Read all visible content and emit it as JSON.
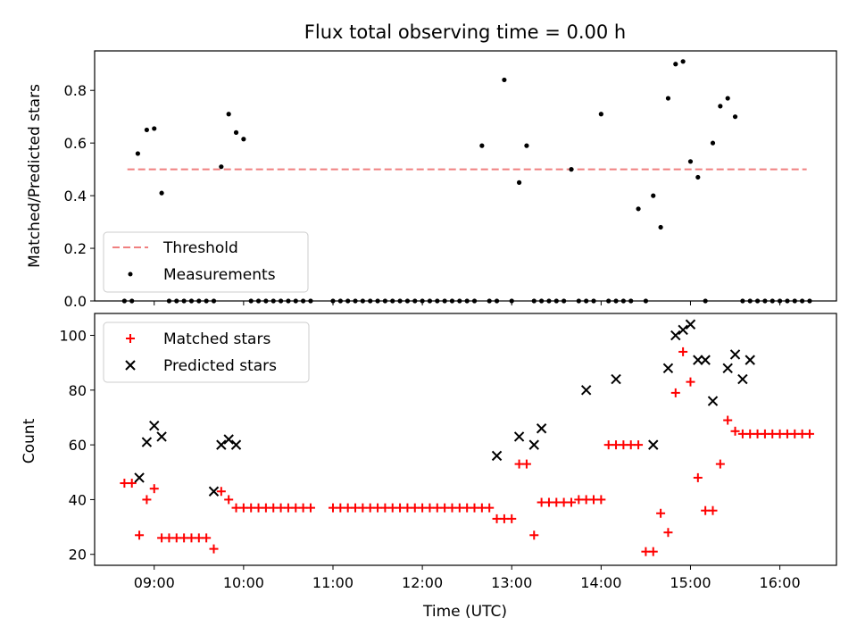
{
  "chart_data": [
    {
      "type": "scatter",
      "title": "Flux total observing time = 0.00 h",
      "xlabel": "",
      "ylabel": "Matched/Predicted stars",
      "xlim": [
        "08:20",
        "16:38"
      ],
      "ylim": [
        0,
        0.95
      ],
      "yticks": [
        "0.0",
        "0.2",
        "0.4",
        "0.6",
        "0.8"
      ],
      "xticks": [
        "09:00",
        "10:00",
        "11:00",
        "12:00",
        "13:00",
        "14:00",
        "15:00",
        "16:00"
      ],
      "legend": {
        "placement": "lower-left",
        "entries": [
          "Threshold",
          "Measurements"
        ]
      },
      "series": [
        {
          "name": "Threshold",
          "style": "dashed-line",
          "color": "#f08080",
          "x": [
            "08:42",
            "16:18"
          ],
          "y": [
            0.5,
            0.5
          ]
        },
        {
          "name": "Measurements",
          "style": "dot",
          "color": "#000000",
          "x": [
            "08:40",
            "08:45",
            "08:49",
            "08:55",
            "09:00",
            "09:05",
            "09:10",
            "09:15",
            "09:20",
            "09:25",
            "09:30",
            "09:35",
            "09:40",
            "09:45",
            "09:50",
            "09:55",
            "10:00",
            "10:05",
            "10:10",
            "10:15",
            "10:20",
            "10:25",
            "10:30",
            "10:35",
            "10:40",
            "10:45",
            "11:00",
            "11:05",
            "11:10",
            "11:15",
            "11:20",
            "11:25",
            "11:30",
            "11:35",
            "11:40",
            "11:45",
            "11:50",
            "11:55",
            "12:00",
            "12:05",
            "12:10",
            "12:15",
            "12:20",
            "12:25",
            "12:30",
            "12:35",
            "12:40",
            "12:45",
            "12:50",
            "12:55",
            "13:00",
            "13:05",
            "13:10",
            "13:15",
            "13:20",
            "13:25",
            "13:30",
            "13:35",
            "13:40",
            "13:45",
            "13:50",
            "13:55",
            "14:00",
            "14:05",
            "14:10",
            "14:15",
            "14:20",
            "14:25",
            "14:30",
            "14:35",
            "14:40",
            "14:45",
            "14:50",
            "14:55",
            "15:00",
            "15:05",
            "15:10",
            "15:15",
            "15:20",
            "15:25",
            "15:30",
            "15:35",
            "15:40",
            "15:45",
            "15:50",
            "15:55",
            "16:00",
            "16:05",
            "16:10",
            "16:15",
            "16:20"
          ],
          "y": [
            0,
            0,
            0.56,
            0.65,
            0.655,
            0.41,
            0,
            0,
            0,
            0,
            0,
            0,
            0,
            0.51,
            0.71,
            0.64,
            0.615,
            0,
            0,
            0,
            0,
            0,
            0,
            0,
            0,
            0,
            0,
            0,
            0,
            0,
            0,
            0,
            0,
            0,
            0,
            0,
            0,
            0,
            0,
            0,
            0,
            0,
            0,
            0,
            0,
            0,
            0.59,
            0,
            0,
            0.84,
            0,
            0.45,
            0.59,
            0,
            0,
            0,
            0,
            0,
            0.5,
            0,
            0,
            0,
            0.71,
            0,
            0,
            0,
            0,
            0.35,
            0,
            0.4,
            0.28,
            0.77,
            0.9,
            0.91,
            0.53,
            0.47,
            0,
            0.6,
            0.74,
            0.77,
            0.7,
            0,
            0,
            0,
            0,
            0,
            0,
            0,
            0,
            0,
            0
          ]
        }
      ]
    },
    {
      "type": "scatter",
      "title": "",
      "xlabel": "Time (UTC)",
      "ylabel": "Count",
      "xlim": [
        "08:20",
        "16:38"
      ],
      "ylim": [
        16,
        108
      ],
      "yticks": [
        "20",
        "40",
        "60",
        "80",
        "100"
      ],
      "xticks": [
        "09:00",
        "10:00",
        "11:00",
        "12:00",
        "13:00",
        "14:00",
        "15:00",
        "16:00"
      ],
      "legend": {
        "placement": "upper-left",
        "entries": [
          "Matched stars",
          "Predicted stars"
        ]
      },
      "series": [
        {
          "name": "Matched stars",
          "marker": "plus",
          "color": "#ff0000",
          "x": [
            "08:40",
            "08:45",
            "08:50",
            "08:55",
            "09:00",
            "09:05",
            "09:10",
            "09:15",
            "09:20",
            "09:25",
            "09:30",
            "09:35",
            "09:40",
            "09:45",
            "09:50",
            "09:55",
            "10:00",
            "10:05",
            "10:10",
            "10:15",
            "10:20",
            "10:25",
            "10:30",
            "10:35",
            "10:40",
            "10:45",
            "11:00",
            "11:05",
            "11:10",
            "11:15",
            "11:20",
            "11:25",
            "11:30",
            "11:35",
            "11:40",
            "11:45",
            "11:50",
            "11:55",
            "12:00",
            "12:05",
            "12:10",
            "12:15",
            "12:20",
            "12:25",
            "12:30",
            "12:35",
            "12:40",
            "12:45",
            "12:50",
            "12:55",
            "13:00",
            "13:05",
            "13:10",
            "13:15",
            "13:20",
            "13:25",
            "13:30",
            "13:35",
            "13:40",
            "13:45",
            "13:50",
            "13:55",
            "14:00",
            "14:05",
            "14:10",
            "14:15",
            "14:20",
            "14:25",
            "14:30",
            "14:35",
            "14:40",
            "14:45",
            "14:50",
            "14:55",
            "15:00",
            "15:05",
            "15:10",
            "15:15",
            "15:20",
            "15:25",
            "15:30",
            "15:35",
            "15:40",
            "15:45",
            "15:50",
            "15:55",
            "16:00",
            "16:05",
            "16:10",
            "16:15",
            "16:20"
          ],
          "y": [
            46,
            46,
            27,
            40,
            44,
            26,
            26,
            26,
            26,
            26,
            26,
            26,
            22,
            43,
            40,
            37,
            37,
            37,
            37,
            37,
            37,
            37,
            37,
            37,
            37,
            37,
            37,
            37,
            37,
            37,
            37,
            37,
            37,
            37,
            37,
            37,
            37,
            37,
            37,
            37,
            37,
            37,
            37,
            37,
            37,
            37,
            37,
            37,
            33,
            33,
            33,
            53,
            53,
            27,
            39,
            39,
            39,
            39,
            39,
            40,
            40,
            40,
            40,
            60,
            60,
            60,
            60,
            60,
            21,
            21,
            35,
            28,
            79,
            94,
            83,
            48,
            36,
            36,
            53,
            69,
            65,
            64,
            64,
            64,
            64,
            64,
            64,
            64,
            64,
            64,
            64
          ]
        },
        {
          "name": "Predicted stars",
          "marker": "x",
          "color": "#000000",
          "x": [
            "08:50",
            "08:55",
            "09:00",
            "09:05",
            "09:40",
            "09:45",
            "09:50",
            "09:55",
            "12:50",
            "13:05",
            "13:15",
            "13:20",
            "13:50",
            "14:10",
            "14:35",
            "14:45",
            "14:50",
            "14:55",
            "15:00",
            "15:05",
            "15:10",
            "15:15",
            "15:25",
            "15:30",
            "15:35",
            "15:40"
          ],
          "y": [
            48,
            61,
            67,
            63,
            43,
            60,
            62,
            60,
            56,
            63,
            60,
            66,
            80,
            84,
            60,
            88,
            100,
            102,
            104,
            91,
            91,
            76,
            88,
            93,
            84,
            91
          ]
        }
      ]
    }
  ]
}
